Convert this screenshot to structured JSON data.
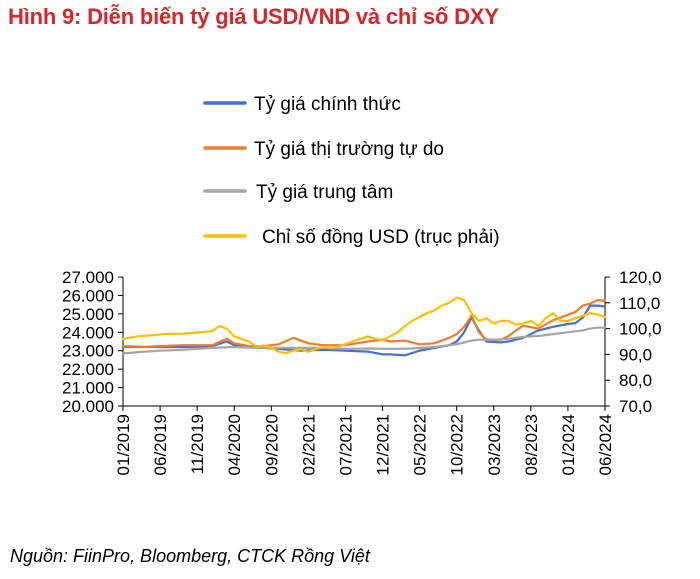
{
  "figure": {
    "title": "Hình 9: Diễn biến tỷ giá USD/VND và chỉ số DXY",
    "source": "Nguồn: FiinPro, Bloomberg, CTCK Rồng Việt"
  },
  "colors": {
    "title": "#d7262b",
    "official": "#4472c4",
    "free_market": "#ed7d31",
    "central": "#a5a5a5",
    "dxy": "#ffc000"
  },
  "chart_data": {
    "type": "line",
    "title": "Hình 9: Diễn biến tỷ giá USD/VND và chỉ số DXY",
    "x_ticks": [
      "01/2019",
      "06/2019",
      "11/2019",
      "04/2020",
      "09/2020",
      "02/2021",
      "07/2021",
      "12/2021",
      "05/2022",
      "10/2022",
      "03/2023",
      "08/2023",
      "01/2024",
      "06/2024"
    ],
    "y_left": {
      "ylim": [
        20000,
        27000
      ],
      "ticks": [
        "20.000",
        "21.000",
        "22.000",
        "23.000",
        "24.000",
        "25.000",
        "26.000",
        "27.000"
      ]
    },
    "y_right": {
      "ylim": [
        70,
        120
      ],
      "ticks": [
        "70,0",
        "80,0",
        "90,0",
        "100,0",
        "110,0",
        "120,0"
      ]
    },
    "grid": false,
    "legend_position": "top",
    "series": [
      {
        "name": "Tỷ giá chính thức",
        "axis": "left",
        "color": "#4472c4",
        "x": [
          0,
          3,
          5,
          8,
          12,
          14,
          15,
          17,
          19,
          21,
          24,
          27,
          30,
          33,
          35,
          36,
          38,
          40,
          42,
          44,
          45,
          46,
          47,
          48,
          49,
          51,
          52,
          53,
          54,
          56,
          58,
          60,
          61,
          62,
          63,
          64,
          65
        ],
        "values": [
          23200,
          23200,
          23200,
          23200,
          23250,
          23500,
          23300,
          23200,
          23150,
          23100,
          23000,
          23050,
          23000,
          22950,
          22800,
          22800,
          22750,
          23000,
          23150,
          23300,
          23500,
          24000,
          24800,
          24100,
          23500,
          23450,
          23500,
          23600,
          23700,
          24100,
          24300,
          24450,
          24500,
          24800,
          25450,
          25450,
          25400
        ]
      },
      {
        "name": "Tỷ giá thị trường tự do",
        "axis": "left",
        "color": "#ed7d31",
        "x": [
          0,
          3,
          5,
          8,
          12,
          14,
          15,
          17,
          19,
          21,
          23,
          25,
          27,
          30,
          33,
          35,
          36,
          38,
          40,
          42,
          44,
          45,
          46,
          47,
          48,
          49,
          51,
          52,
          53,
          54,
          56,
          58,
          60,
          61,
          62,
          63,
          64,
          65
        ],
        "values": [
          23250,
          23200,
          23250,
          23300,
          23300,
          23650,
          23400,
          23250,
          23250,
          23350,
          23700,
          23400,
          23300,
          23300,
          23500,
          23600,
          23500,
          23550,
          23350,
          23400,
          23700,
          23900,
          24300,
          24900,
          24000,
          23600,
          23600,
          23800,
          24100,
          24350,
          24200,
          24650,
          24950,
          25100,
          25450,
          25550,
          25750,
          25700
        ]
      },
      {
        "name": "Tỷ giá trung tâm",
        "axis": "left",
        "color": "#a5a5a5",
        "x": [
          0,
          3,
          5,
          8,
          12,
          15,
          18,
          21,
          24,
          27,
          30,
          33,
          36,
          39,
          42,
          45,
          47,
          48,
          50,
          52,
          54,
          56,
          58,
          60,
          62,
          63,
          64,
          65
        ],
        "values": [
          22850,
          22950,
          23000,
          23050,
          23150,
          23200,
          23150,
          23150,
          23150,
          23150,
          23100,
          23120,
          23100,
          23120,
          23200,
          23350,
          23550,
          23600,
          23580,
          23650,
          23750,
          23800,
          23900,
          24000,
          24100,
          24200,
          24250,
          24250
        ]
      },
      {
        "name": "Chỉ số đồng USD (trục phải)",
        "axis": "right",
        "color": "#ffc000",
        "x": [
          0,
          2,
          4,
          6,
          8,
          10,
          12,
          13,
          14,
          15,
          16,
          17,
          18,
          19,
          20,
          21,
          22,
          23,
          24,
          25,
          26,
          27,
          28,
          29,
          30,
          31,
          32,
          33,
          34,
          35,
          36,
          37,
          38,
          39,
          40,
          41,
          42,
          43,
          44,
          45,
          46,
          47,
          48,
          49,
          50,
          51,
          52,
          53,
          54,
          55,
          56,
          57,
          58,
          59,
          60,
          61,
          62,
          63,
          64,
          65
        ],
        "values": [
          96,
          97,
          97.5,
          98,
          98,
          98.5,
          99,
          101,
          100,
          97,
          96,
          95,
          93,
          93.5,
          92.5,
          91,
          90.5,
          91.5,
          92,
          91,
          92,
          93,
          92.5,
          93,
          94,
          95,
          96,
          97,
          96,
          95.5,
          97,
          98.5,
          101,
          103,
          104.5,
          106,
          107,
          109,
          110,
          112,
          111,
          106,
          103,
          104,
          102,
          103,
          103,
          101.5,
          102,
          103,
          101,
          104,
          106,
          103,
          103,
          104,
          105,
          106,
          105.5,
          104.5
        ]
      }
    ]
  }
}
